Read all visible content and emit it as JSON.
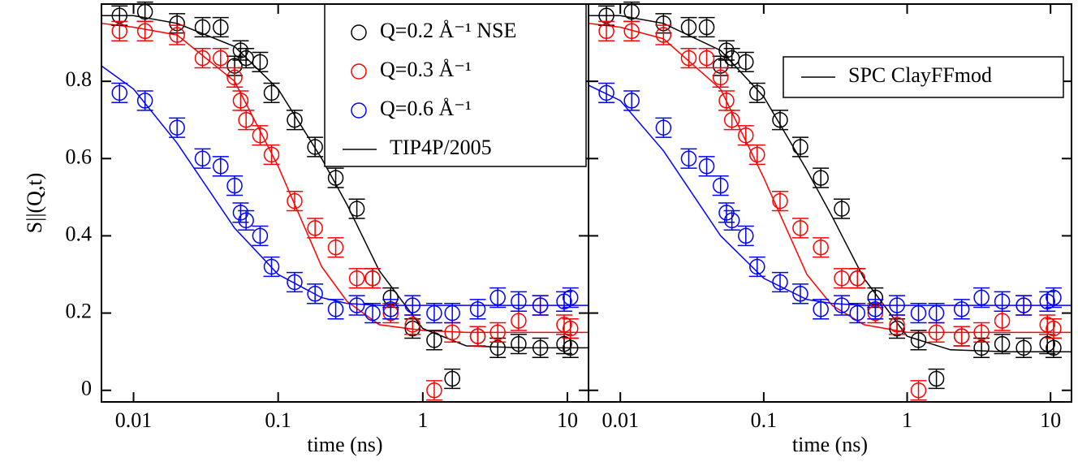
{
  "chart_data": [
    {
      "type": "scatter",
      "xlabel": "time (ns)",
      "ylabel": "S||(Q,t)",
      "xscale": "log",
      "xlim": [
        0.006,
        14
      ],
      "ylim": [
        -0.03,
        1.0
      ],
      "xticks": [
        0.01,
        0.1,
        1,
        10
      ],
      "yticks": [
        0,
        0.2,
        0.4,
        0.6,
        0.8
      ],
      "ytick_labels": true,
      "x": [
        0.008,
        0.012,
        0.02,
        0.03,
        0.04,
        0.05,
        0.055,
        0.06,
        0.075,
        0.09,
        0.13,
        0.18,
        0.25,
        0.35,
        0.45,
        0.6,
        0.85,
        1.2,
        1.6,
        2.4,
        3.3,
        4.6,
        6.5,
        9.5,
        10.5
      ],
      "series": [
        {
          "name": "Q=0.2 Å⁻¹ NSE",
          "color": "#000000",
          "error": 0.025,
          "values": [
            0.97,
            0.98,
            0.95,
            0.94,
            0.94,
            0.84,
            0.88,
            0.86,
            0.85,
            0.77,
            0.7,
            0.63,
            0.55,
            0.47,
            0.29,
            0.24,
            0.16,
            0.13,
            0.03,
            0.14,
            0.11,
            0.12,
            0.11,
            0.12,
            0.11
          ]
        },
        {
          "name": "Q=0.3 Å⁻¹",
          "color": "#ff0000",
          "error": 0.025,
          "values": [
            0.93,
            0.93,
            0.92,
            0.86,
            0.86,
            0.81,
            0.75,
            0.7,
            0.66,
            0.61,
            0.49,
            0.42,
            0.37,
            0.29,
            0.29,
            0.2,
            0.17,
            0.0,
            0.15,
            0.14,
            0.15,
            0.18,
            0.22,
            0.17,
            0.16
          ]
        },
        {
          "name": "Q=0.6 Å⁻¹",
          "color": "#0000ff",
          "error": 0.025,
          "values": [
            0.77,
            0.75,
            0.68,
            0.6,
            0.58,
            0.53,
            0.46,
            0.44,
            0.4,
            0.32,
            0.28,
            0.25,
            0.21,
            0.22,
            0.2,
            0.21,
            0.22,
            0.2,
            0.2,
            0.21,
            0.24,
            0.23,
            0.22,
            0.23,
            0.24
          ]
        }
      ],
      "model": "TIP4P/2005",
      "legend": "top-right",
      "fits": [
        {
          "color": "#000000",
          "x": [
            0.006,
            0.01,
            0.02,
            0.05,
            0.1,
            0.2,
            0.3,
            0.5,
            1,
            2,
            5,
            14
          ],
          "values": [
            0.97,
            0.97,
            0.95,
            0.89,
            0.78,
            0.6,
            0.48,
            0.31,
            0.16,
            0.115,
            0.11,
            0.11
          ]
        },
        {
          "color": "#ff0000",
          "x": [
            0.006,
            0.01,
            0.02,
            0.05,
            0.1,
            0.2,
            0.3,
            0.5,
            1,
            2,
            5,
            14
          ],
          "values": [
            0.95,
            0.94,
            0.92,
            0.8,
            0.58,
            0.32,
            0.23,
            0.17,
            0.155,
            0.15,
            0.15,
            0.15
          ]
        },
        {
          "color": "#0000ff",
          "x": [
            0.006,
            0.01,
            0.02,
            0.05,
            0.1,
            0.2,
            0.3,
            0.5,
            1,
            2,
            5,
            14
          ],
          "values": [
            0.84,
            0.78,
            0.64,
            0.42,
            0.3,
            0.24,
            0.225,
            0.22,
            0.22,
            0.22,
            0.22,
            0.22
          ]
        }
      ]
    },
    {
      "type": "scatter",
      "xlabel": "time (ns)",
      "xscale": "log",
      "xlim": [
        0.006,
        14
      ],
      "ylim": [
        -0.03,
        1.0
      ],
      "xticks": [
        0.01,
        0.1,
        1,
        10
      ],
      "yticks": [
        0,
        0.2,
        0.4,
        0.6,
        0.8
      ],
      "ytick_labels": false,
      "x": [
        0.008,
        0.012,
        0.02,
        0.03,
        0.04,
        0.05,
        0.055,
        0.06,
        0.075,
        0.09,
        0.13,
        0.18,
        0.25,
        0.35,
        0.45,
        0.6,
        0.85,
        1.2,
        1.6,
        2.4,
        3.3,
        4.6,
        6.5,
        9.5,
        10.5
      ],
      "series": [
        {
          "color": "#000000",
          "error": 0.025,
          "values": [
            0.97,
            0.98,
            0.95,
            0.94,
            0.94,
            0.84,
            0.88,
            0.86,
            0.85,
            0.77,
            0.7,
            0.63,
            0.55,
            0.47,
            0.29,
            0.24,
            0.16,
            0.13,
            0.03,
            0.14,
            0.11,
            0.12,
            0.11,
            0.12,
            0.11
          ]
        },
        {
          "color": "#ff0000",
          "error": 0.025,
          "values": [
            0.93,
            0.93,
            0.92,
            0.86,
            0.86,
            0.81,
            0.75,
            0.7,
            0.66,
            0.61,
            0.49,
            0.42,
            0.37,
            0.29,
            0.29,
            0.2,
            0.17,
            0.0,
            0.15,
            0.14,
            0.15,
            0.18,
            0.22,
            0.17,
            0.16
          ]
        },
        {
          "color": "#0000ff",
          "error": 0.025,
          "values": [
            0.77,
            0.75,
            0.68,
            0.6,
            0.58,
            0.53,
            0.46,
            0.44,
            0.4,
            0.32,
            0.28,
            0.25,
            0.21,
            0.22,
            0.2,
            0.21,
            0.22,
            0.2,
            0.2,
            0.21,
            0.24,
            0.23,
            0.22,
            0.23,
            0.24
          ]
        }
      ],
      "model": "SPC ClayFFmod",
      "legend": "top-right",
      "fits": [
        {
          "color": "#000000",
          "x": [
            0.006,
            0.01,
            0.02,
            0.05,
            0.1,
            0.2,
            0.3,
            0.5,
            1,
            2,
            5,
            14
          ],
          "values": [
            0.97,
            0.97,
            0.95,
            0.88,
            0.76,
            0.57,
            0.45,
            0.29,
            0.14,
            0.105,
            0.1,
            0.1
          ]
        },
        {
          "color": "#ff0000",
          "x": [
            0.006,
            0.01,
            0.02,
            0.05,
            0.1,
            0.2,
            0.3,
            0.5,
            1,
            2,
            5,
            14
          ],
          "values": [
            0.95,
            0.94,
            0.91,
            0.78,
            0.55,
            0.3,
            0.22,
            0.17,
            0.15,
            0.15,
            0.15,
            0.15
          ]
        },
        {
          "color": "#0000ff",
          "x": [
            0.006,
            0.01,
            0.02,
            0.05,
            0.1,
            0.2,
            0.3,
            0.5,
            1,
            2,
            5,
            14
          ],
          "values": [
            0.79,
            0.75,
            0.62,
            0.4,
            0.29,
            0.235,
            0.225,
            0.22,
            0.22,
            0.22,
            0.22,
            0.22
          ]
        }
      ]
    }
  ]
}
